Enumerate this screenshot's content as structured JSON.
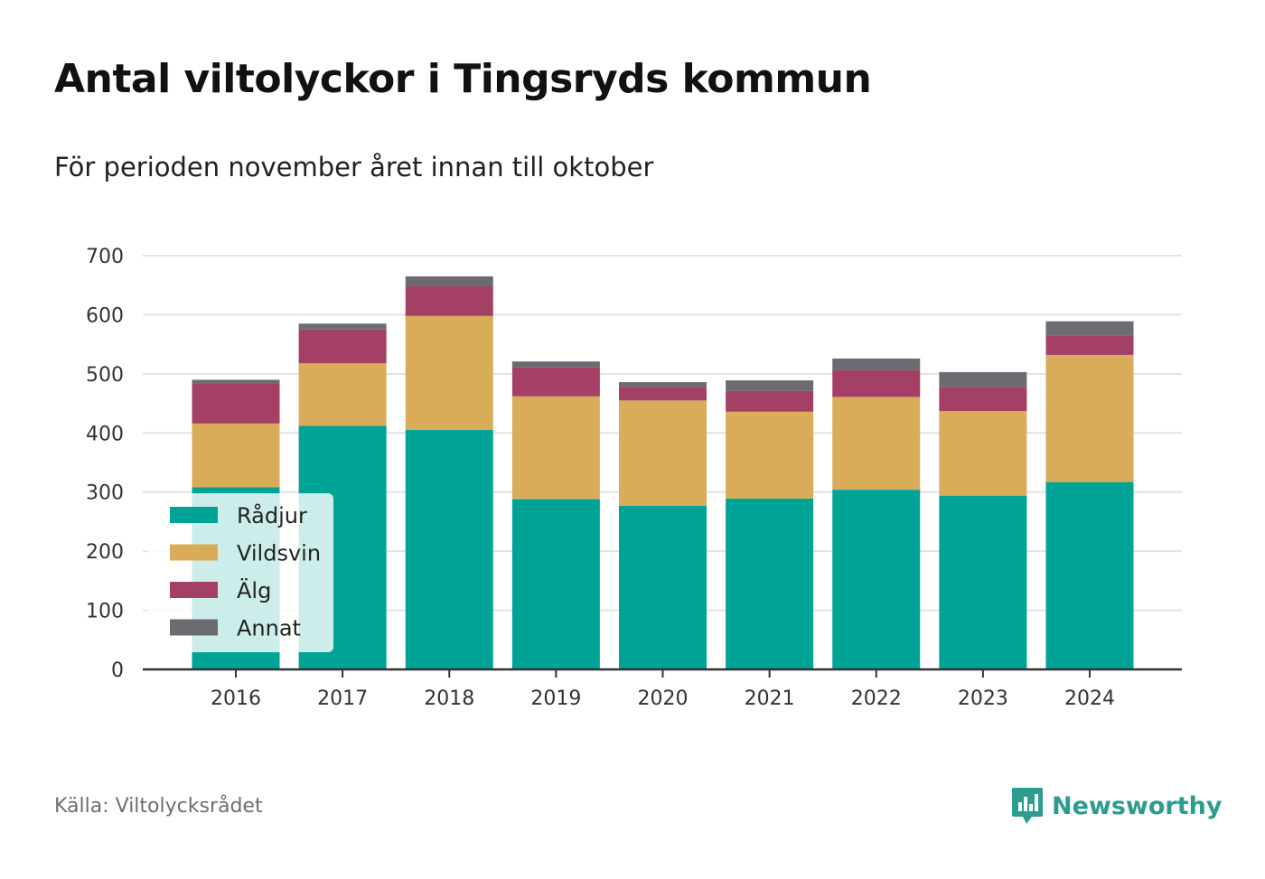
{
  "header": {
    "title": "Antal viltolyckor i Tingsryds kommun",
    "subtitle": "För perioden november året innan till oktober"
  },
  "footer": {
    "source": "Källa: Viltolycksrådet",
    "brand": "Newsworthy",
    "brand_icon": "newsworthy-logo-icon"
  },
  "chart_data": {
    "type": "bar",
    "stacked": true,
    "title": "Antal viltolyckor i Tingsryds kommun",
    "subtitle": "För perioden november året innan till oktober",
    "xlabel": "",
    "ylabel": "",
    "ylim": [
      0,
      700
    ],
    "yticks": [
      0,
      100,
      200,
      300,
      400,
      500,
      600,
      700
    ],
    "grid": true,
    "legend_position": "bottom-left",
    "categories": [
      "2016",
      "2017",
      "2018",
      "2019",
      "2020",
      "2021",
      "2022",
      "2023",
      "2024"
    ],
    "series": [
      {
        "name": "Rådjur",
        "color": "#00a497",
        "values": [
          308,
          412,
          405,
          288,
          277,
          289,
          304,
          294,
          317
        ]
      },
      {
        "name": "Vildsvin",
        "color": "#d9ac59",
        "values": [
          108,
          106,
          193,
          174,
          178,
          147,
          157,
          143,
          215
        ]
      },
      {
        "name": "Älg",
        "color": "#a43f66",
        "values": [
          67,
          57,
          50,
          49,
          23,
          35,
          45,
          41,
          33
        ]
      },
      {
        "name": "Annat",
        "color": "#6d6b72",
        "values": [
          7,
          10,
          17,
          10,
          8,
          18,
          20,
          25,
          24
        ]
      }
    ]
  }
}
